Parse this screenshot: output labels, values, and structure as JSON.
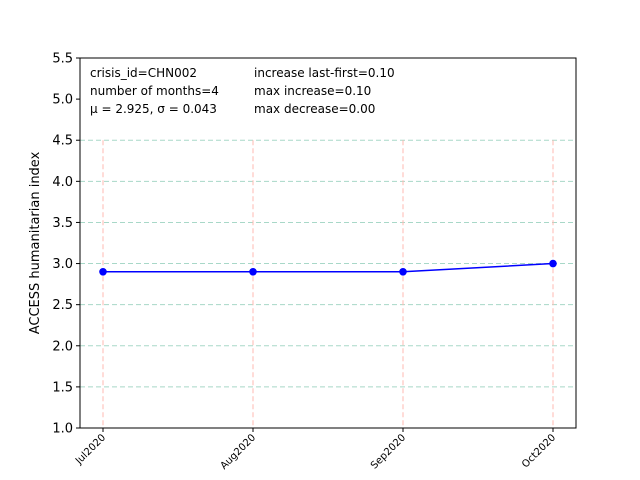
{
  "chart_data": {
    "type": "line",
    "categories": [
      "Jul2020",
      "Aug2020",
      "Sep2020",
      "Oct2020"
    ],
    "series": [
      {
        "values": [
          2.9,
          2.9,
          2.9,
          3.0
        ],
        "color": "#0000ff"
      }
    ],
    "ylabel": "ACCESS humanitarian index",
    "ylim": [
      1.0,
      5.5
    ],
    "yticks": [
      "1.0",
      "1.5",
      "2.0",
      "2.5",
      "3.0",
      "3.5",
      "4.0",
      "4.5",
      "5.0",
      "5.5"
    ],
    "grid": {
      "horizontal": true,
      "horizontal_color": "#a8d8c8",
      "vertical": true,
      "vertical_color": "#ffb8b0",
      "style": "dashed"
    },
    "annotations": {
      "left": [
        "crisis_id=CHN002",
        "number of months=4",
        "μ = 2.925,  σ = 0.043"
      ],
      "right": [
        "increase last-first=0.10",
        "max increase=0.10",
        "max decrease=0.00"
      ]
    }
  }
}
